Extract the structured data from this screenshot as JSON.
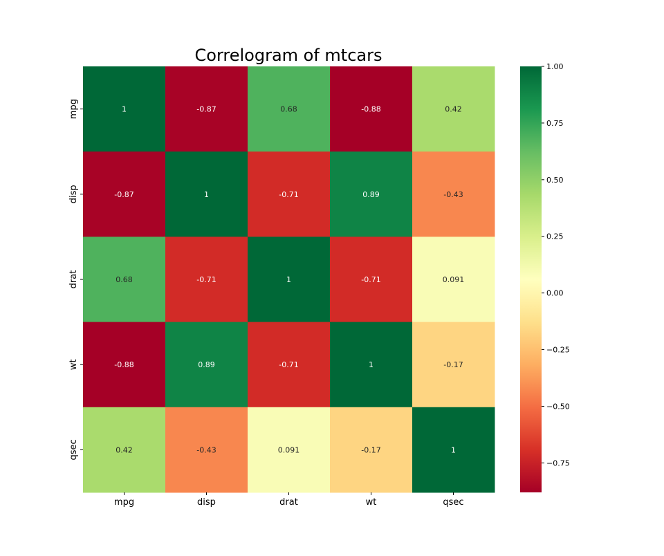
{
  "chart_data": {
    "type": "heatmap",
    "title": "Correlogram of mtcars",
    "xlabel": "",
    "ylabel": "",
    "x_categories": [
      "mpg",
      "disp",
      "drat",
      "wt",
      "qsec"
    ],
    "y_categories": [
      "mpg",
      "disp",
      "drat",
      "wt",
      "qsec"
    ],
    "values": [
      [
        1,
        -0.87,
        0.68,
        -0.88,
        0.42
      ],
      [
        -0.87,
        1,
        -0.71,
        0.89,
        -0.43
      ],
      [
        0.68,
        -0.71,
        1,
        -0.71,
        0.091
      ],
      [
        -0.88,
        0.89,
        -0.71,
        1,
        -0.17
      ],
      [
        0.42,
        -0.43,
        0.091,
        -0.17,
        1
      ]
    ],
    "cell_labels": [
      [
        "1",
        "-0.87",
        "0.68",
        "-0.88",
        "0.42"
      ],
      [
        "-0.87",
        "1",
        "-0.71",
        "0.89",
        "-0.43"
      ],
      [
        "0.68",
        "-0.71",
        "1",
        "-0.71",
        "0.091"
      ],
      [
        "-0.88",
        "0.89",
        "-0.71",
        "1",
        "-0.17"
      ],
      [
        "0.42",
        "-0.43",
        "0.091",
        "-0.17",
        "1"
      ]
    ],
    "colormap": "RdYlGn",
    "colorbar": {
      "vmin": -0.88,
      "vmax": 1.0,
      "ticks": [
        1.0,
        0.75,
        0.5,
        0.25,
        0.0,
        -0.25,
        -0.5,
        -0.75
      ],
      "tick_labels": [
        "1.00",
        "0.75",
        "0.50",
        "0.25",
        "0.00",
        "−0.25",
        "−0.50",
        "−0.75"
      ]
    },
    "colormap_stops": [
      "#a50026",
      "#d73027",
      "#f46d43",
      "#fdae61",
      "#fee08b",
      "#ffffbf",
      "#d9ef8b",
      "#a6d96a",
      "#66bd63",
      "#1a9850",
      "#006837"
    ],
    "annotation_colors": {
      "light_text": "#ffffff",
      "dark_text": "#262626"
    },
    "grid": false,
    "legend": "colorbar-right"
  }
}
